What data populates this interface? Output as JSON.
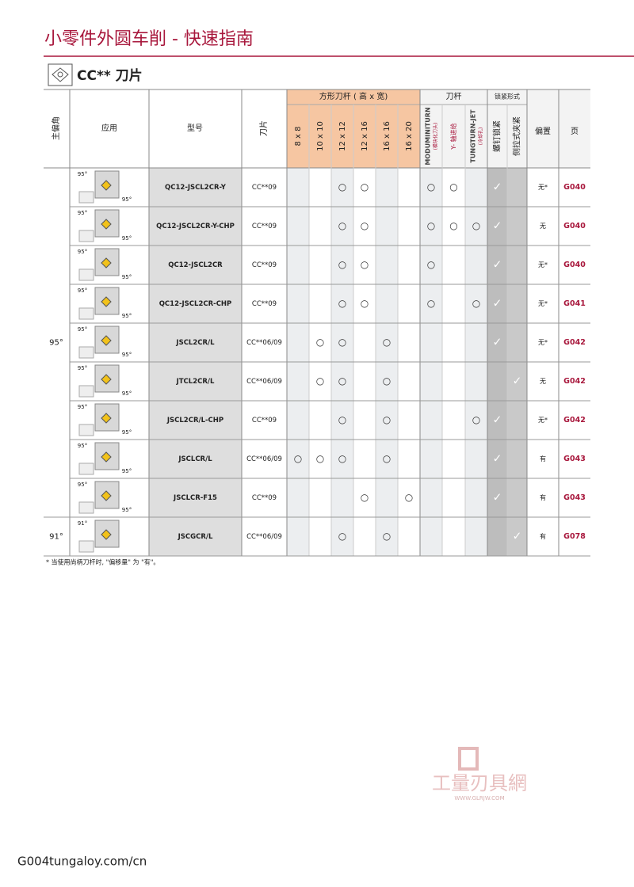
{
  "header": {
    "title": "小零件外圆车削 - 快速指南",
    "section": "CC** 刀片"
  },
  "table": {
    "headers": {
      "angle": "主偏角",
      "application": "应用",
      "model": "型号",
      "insert": "刀片",
      "offset": "偏置",
      "page": "页",
      "size_group": "方形刀杆 ( 高 x 宽)",
      "holder_group": "刀杆",
      "lock_group": "锁紧形式"
    },
    "columns": [
      {
        "label": "8 x 8"
      },
      {
        "label": "10 x 10"
      },
      {
        "label": "12 x 12"
      },
      {
        "label": "12 x 16"
      },
      {
        "label": "16 x 16"
      },
      {
        "label": "16 x 20"
      },
      {
        "label": "MODUMINITURN",
        "sub": "(模块化刀头)"
      },
      {
        "label": "Y- 轴进给"
      },
      {
        "label": "TUNGTURN-JET",
        "sub": "(冷却孔)"
      },
      {
        "label": "螺钉锁紧"
      },
      {
        "label": "侧拉式夹紧"
      }
    ],
    "groups": [
      {
        "angle": "95°",
        "rows": [
          {
            "fig": [
              "95°",
              "95°"
            ],
            "model": "QC12-JSCL2CR-Y",
            "insert": "CC**09",
            "marks": [
              null,
              null,
              "○",
              "○",
              null,
              null,
              "○",
              "○",
              null,
              "✓",
              null
            ],
            "offset": "无*",
            "page": "G040"
          },
          {
            "fig": [
              "95°",
              "95°"
            ],
            "model": "QC12-JSCL2CR-Y-CHP",
            "insert": "CC**09",
            "marks": [
              null,
              null,
              "○",
              "○",
              null,
              null,
              "○",
              "○",
              "○",
              "✓",
              null
            ],
            "offset": "无",
            "page": "G040"
          },
          {
            "fig": [
              "95°",
              "95°"
            ],
            "model": "QC12-JSCL2CR",
            "insert": "CC**09",
            "marks": [
              null,
              null,
              "○",
              "○",
              null,
              null,
              "○",
              null,
              null,
              "✓",
              null
            ],
            "offset": "无*",
            "page": "G040"
          },
          {
            "fig": [
              "95°",
              "95°"
            ],
            "model": "QC12-JSCL2CR-CHP",
            "insert": "CC**09",
            "marks": [
              null,
              null,
              "○",
              "○",
              null,
              null,
              "○",
              null,
              "○",
              "✓",
              null
            ],
            "offset": "无*",
            "page": "G041"
          },
          {
            "fig": [
              "95°",
              "95°"
            ],
            "model": "JSCL2CR/L",
            "insert": "CC**06/09",
            "marks": [
              null,
              "○",
              "○",
              null,
              "○",
              null,
              null,
              null,
              null,
              "✓",
              null
            ],
            "offset": "无*",
            "page": "G042"
          },
          {
            "fig": [
              "95°",
              "95°"
            ],
            "model": "JTCL2CR/L",
            "insert": "CC**06/09",
            "marks": [
              null,
              "○",
              "○",
              null,
              "○",
              null,
              null,
              null,
              null,
              null,
              "✓"
            ],
            "offset": "无",
            "page": "G042"
          },
          {
            "fig": [
              "95°",
              "95°"
            ],
            "model": "JSCL2CR/L-CHP",
            "insert": "CC**09",
            "marks": [
              null,
              null,
              "○",
              null,
              "○",
              null,
              null,
              null,
              "○",
              "✓",
              null
            ],
            "offset": "无*",
            "page": "G042"
          },
          {
            "fig": [
              "95°",
              "95°"
            ],
            "model": "JSCLCR/L",
            "insert": "CC**06/09",
            "marks": [
              "○",
              "○",
              "○",
              null,
              "○",
              null,
              null,
              null,
              null,
              "✓",
              null
            ],
            "offset": "有",
            "page": "G043"
          },
          {
            "fig": [
              "95°",
              "95°"
            ],
            "model": "JSCLCR-F15",
            "insert": "CC**09",
            "marks": [
              null,
              null,
              null,
              "○",
              null,
              "○",
              null,
              null,
              null,
              "✓",
              null
            ],
            "offset": "有",
            "page": "G043"
          }
        ]
      },
      {
        "angle": "91°",
        "rows": [
          {
            "fig": [
              "91°"
            ],
            "model": "JSCGCR/L",
            "insert": "CC**06/09",
            "marks": [
              null,
              null,
              "○",
              null,
              "○",
              null,
              null,
              null,
              null,
              null,
              "✓"
            ],
            "offset": "有",
            "page": "G078"
          }
        ]
      }
    ]
  },
  "footnote": "* 当使用尚柄刀杆时, \"偏移量\" 为 \"有\"。",
  "watermark": {
    "text": "工量刃具網",
    "url": "WWW.GLRJW.COM"
  },
  "footer": {
    "page": "G004",
    "url": "tungaloy.com/cn"
  }
}
